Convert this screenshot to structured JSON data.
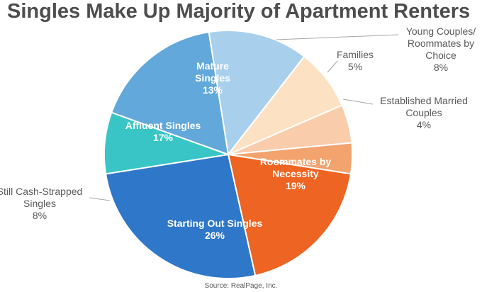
{
  "chart_data": {
    "type": "pie",
    "title": "Singles Make Up Majority of Apartment Renters",
    "source": "Source: RealPage, Inc.",
    "slices": [
      {
        "name": "Mature Singles",
        "lines": [
          "Mature",
          "Singles"
        ],
        "value_label": "13%",
        "value": 13,
        "color": "#a8d0ed",
        "label_color": "#ffffff",
        "label_inside": true
      },
      {
        "name": "Young Couples/ Roommates by Choice",
        "lines": [
          "Young Couples/",
          "Roommates by",
          "Choice"
        ],
        "value_label": "8%",
        "value": 8,
        "color": "#fde1c3",
        "label_color": "#595959",
        "label_inside": false
      },
      {
        "name": "Families",
        "lines": [
          "Families"
        ],
        "value_label": "5%",
        "value": 5,
        "color": "#f9ccab",
        "label_color": "#595959",
        "label_inside": false
      },
      {
        "name": "Established Married Couples",
        "lines": [
          "Established Married",
          "Couples"
        ],
        "value_label": "4%",
        "value": 4,
        "color": "#f2a36e",
        "label_color": "#595959",
        "label_inside": false
      },
      {
        "name": "Roommates by Necessity",
        "lines": [
          "Roommates by",
          "Necessity"
        ],
        "value_label": "19%",
        "value": 19,
        "color": "#ee6422",
        "label_color": "#ffffff",
        "label_inside": true
      },
      {
        "name": "Starting Out Singles",
        "lines": [
          "Starting Out Singles"
        ],
        "value_label": "26%",
        "value": 26,
        "color": "#2f77c8",
        "label_color": "#ffffff",
        "label_inside": true
      },
      {
        "name": "Still Cash-Strapped Singles",
        "lines": [
          "Still Cash-Strapped",
          "Singles"
        ],
        "value_label": "8%",
        "value": 8,
        "color": "#39c5c5",
        "label_color": "#595959",
        "label_inside": false
      },
      {
        "name": "Affluent Singles",
        "lines": [
          "Affluent Singles"
        ],
        "value_label": "17%",
        "value": 17,
        "color": "#62a8da",
        "label_color": "#ffffff",
        "label_inside": true
      }
    ]
  }
}
